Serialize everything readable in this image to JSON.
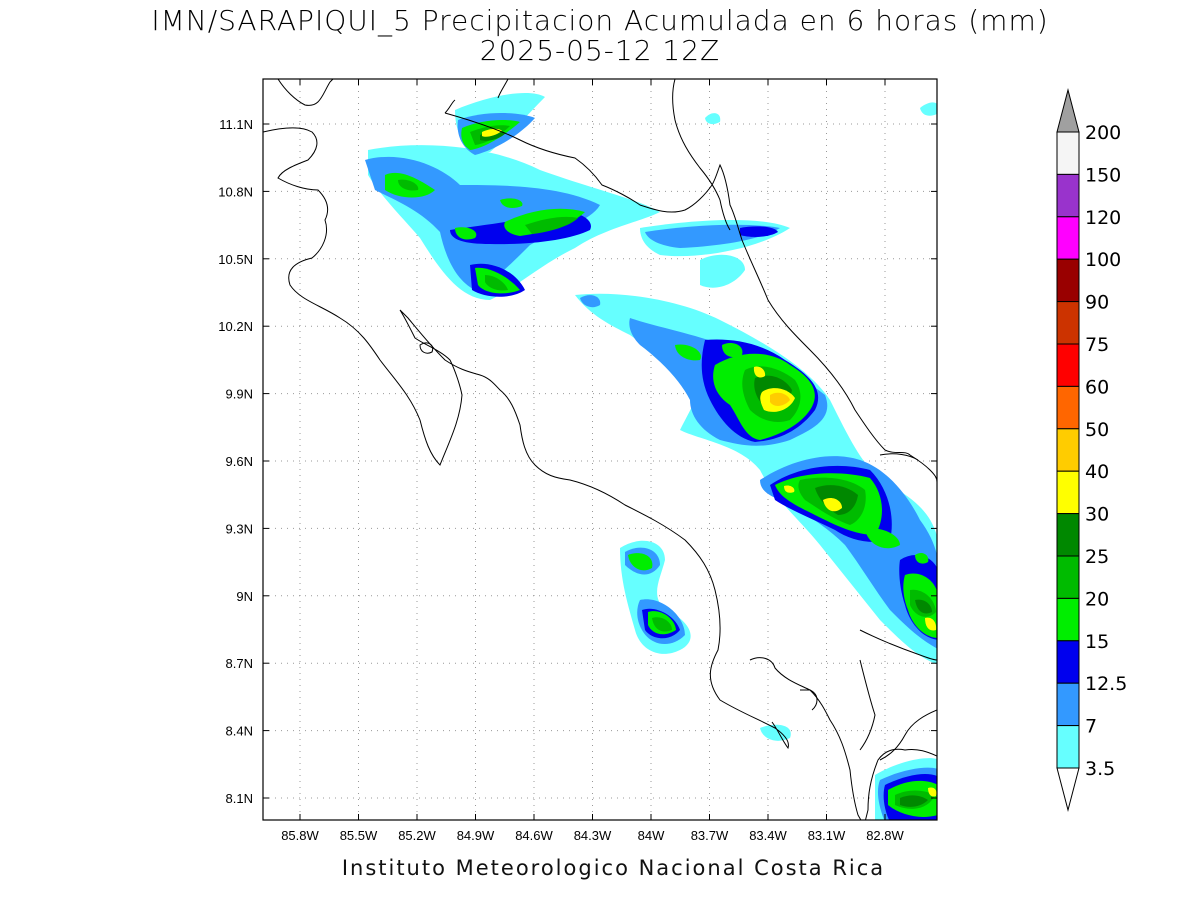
{
  "title": {
    "line1": "IMN/SARAPIQUI_5 Precipitacion Acumulada en 6 horas (mm)",
    "line2": "2025-05-12 12Z"
  },
  "footer": "Instituto Meteorologico Nacional Costa Rica",
  "axes": {
    "lon_ticks": [
      "85.8W",
      "85.5W",
      "85.2W",
      "84.9W",
      "84.6W",
      "84.3W",
      "84W",
      "83.7W",
      "83.4W",
      "83.1W",
      "82.8W"
    ],
    "lat_ticks": [
      "11.1N",
      "10.8N",
      "10.5N",
      "10.2N",
      "9.9N",
      "9.6N",
      "9.3N",
      "9N",
      "8.7N",
      "8.4N",
      "8.1N"
    ],
    "grid": true
  },
  "colorbar": {
    "labels": [
      "200",
      "150",
      "120",
      "100",
      "90",
      "75",
      "60",
      "50",
      "40",
      "30",
      "25",
      "20",
      "15",
      "12.5",
      "7",
      "3.5"
    ],
    "colors": [
      "#a0a0a0",
      "#f5f5f5",
      "#9933cc",
      "#ff00ff",
      "#990000",
      "#cc3300",
      "#ff0000",
      "#ff6600",
      "#ffcc00",
      "#ffff00",
      "#008800",
      "#00bb00",
      "#00ee00",
      "#0000ee",
      "#3399ff",
      "#66ffff"
    ]
  },
  "colors": {
    "c3": "#66ffff",
    "c7": "#3399ff",
    "c12": "#0000ee",
    "c15": "#00ee00",
    "c20": "#00bb00",
    "c25": "#008800",
    "c30": "#ffff00",
    "c40": "#ffcc00"
  }
}
